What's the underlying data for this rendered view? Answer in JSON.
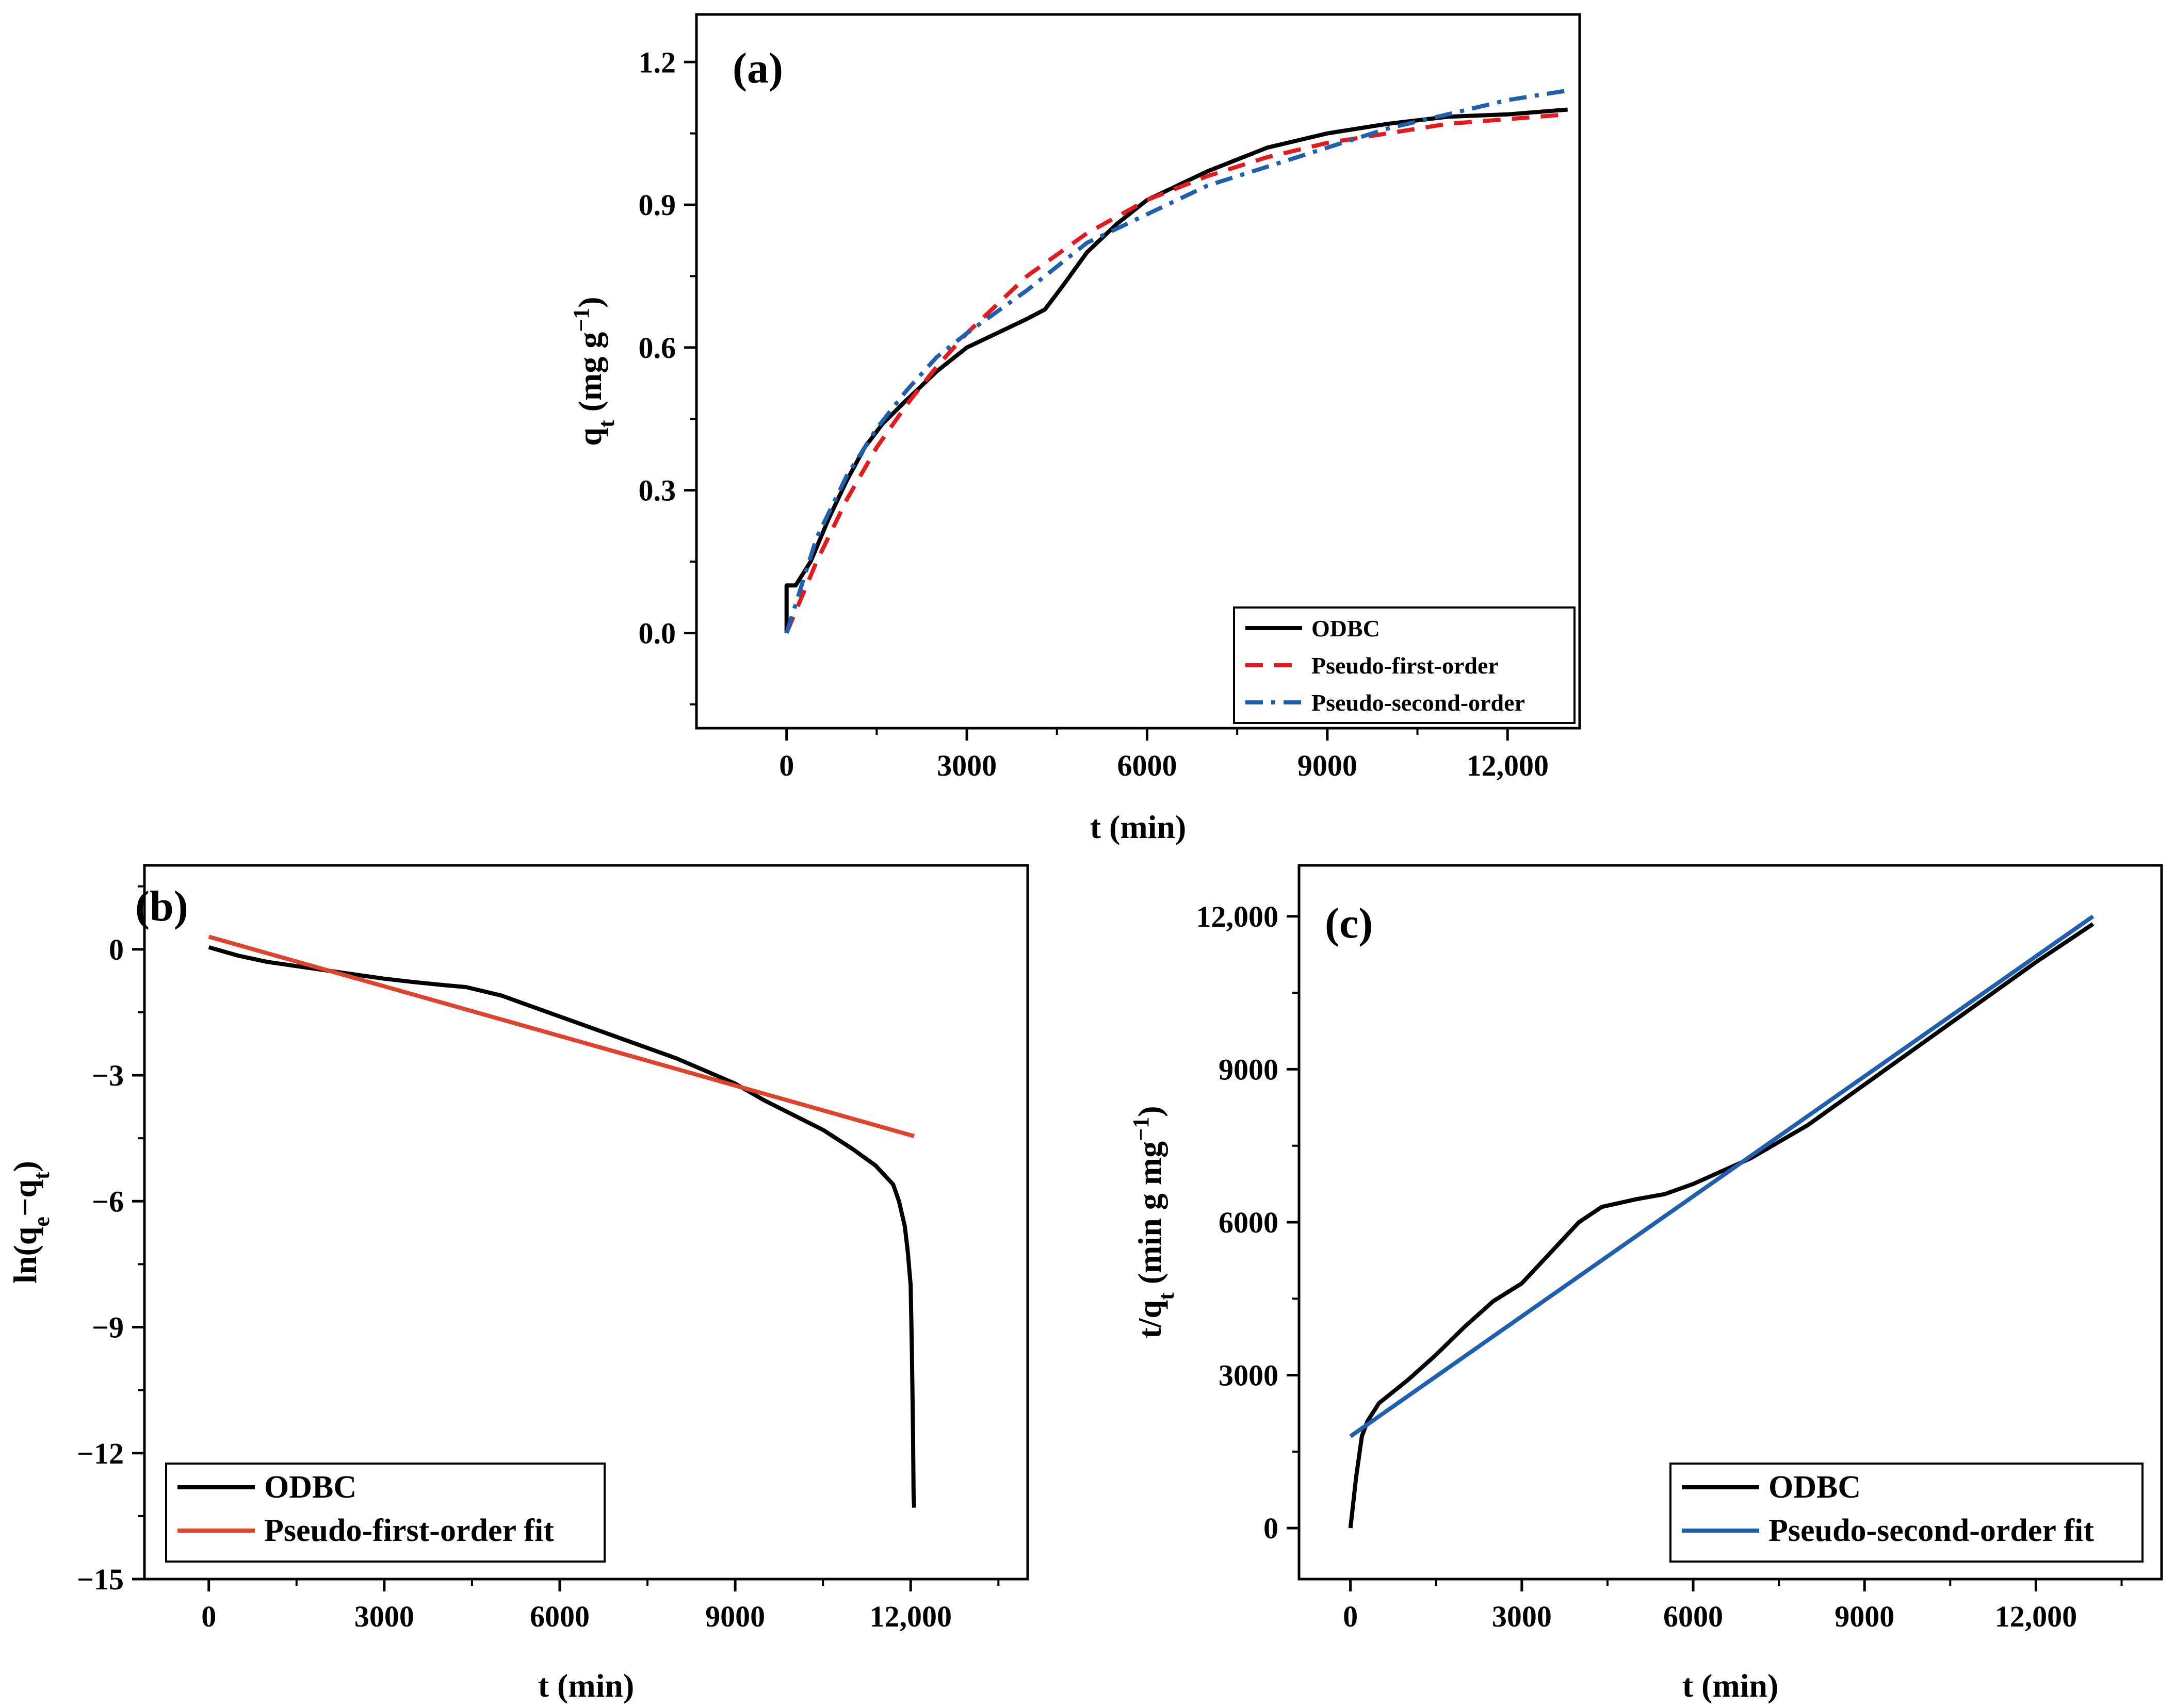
{
  "chart_data": [
    {
      "panel_label": "(a)",
      "type": "line",
      "xlabel": "t (min)",
      "ylabel": "q_t (mg g^-1)",
      "xlim": [
        -1500,
        13200
      ],
      "ylim": [
        -0.2,
        1.3
      ],
      "xticks": [
        0,
        3000,
        6000,
        9000,
        12000
      ],
      "xtick_labels": [
        "0",
        "3000",
        "6000",
        "9000",
        "12,000"
      ],
      "yticks": [
        0.0,
        0.3,
        0.6,
        0.9,
        1.2
      ],
      "ytick_labels": [
        "0.0",
        "0.3",
        "0.6",
        "0.9",
        "1.2"
      ],
      "legend": "bottom-right",
      "series": [
        {
          "name": "ODBC",
          "color": "#000000",
          "style": "solid",
          "x": [
            0,
            0,
            150,
            400,
            700,
            1000,
            1300,
            1600,
            2000,
            2500,
            3000,
            3500,
            4000,
            4300,
            4600,
            5000,
            5500,
            6000,
            7000,
            8000,
            9000,
            10000,
            11000,
            12000,
            13000
          ],
          "y": [
            0.0,
            0.1,
            0.1,
            0.15,
            0.24,
            0.32,
            0.39,
            0.44,
            0.49,
            0.55,
            0.6,
            0.63,
            0.66,
            0.68,
            0.73,
            0.8,
            0.86,
            0.91,
            0.97,
            1.02,
            1.05,
            1.07,
            1.085,
            1.09,
            1.1
          ]
        },
        {
          "name": "Pseudo-first-order",
          "color": "#e41a1c",
          "style": "dashed",
          "x": [
            0,
            500,
            1000,
            1500,
            2000,
            2500,
            3000,
            4000,
            5000,
            6000,
            7000,
            8000,
            9000,
            10000,
            11000,
            12000,
            13000
          ],
          "y": [
            0.0,
            0.15,
            0.28,
            0.39,
            0.48,
            0.56,
            0.63,
            0.75,
            0.84,
            0.91,
            0.96,
            1.0,
            1.03,
            1.05,
            1.07,
            1.08,
            1.09
          ]
        },
        {
          "name": "Pseudo-second-order",
          "color": "#1f5fb0",
          "style": "dashdot",
          "x": [
            0,
            500,
            1000,
            1500,
            2000,
            2500,
            3000,
            4000,
            5000,
            6000,
            7000,
            8000,
            9000,
            10000,
            11000,
            12000,
            13000
          ],
          "y": [
            0.0,
            0.2,
            0.33,
            0.43,
            0.51,
            0.58,
            0.63,
            0.72,
            0.82,
            0.88,
            0.94,
            0.98,
            1.02,
            1.06,
            1.09,
            1.12,
            1.14
          ]
        }
      ]
    },
    {
      "panel_label": "(b)",
      "type": "line",
      "xlabel": "t (min)",
      "ylabel": "ln(q_e-q_t)",
      "xlim": [
        -1100,
        14000
      ],
      "ylim": [
        -15,
        2
      ],
      "xticks": [
        0,
        3000,
        6000,
        9000,
        12000
      ],
      "xtick_labels": [
        "0",
        "3000",
        "6000",
        "9000",
        "12,000"
      ],
      "yticks": [
        0,
        -3,
        -6,
        -9,
        -12,
        -15
      ],
      "ytick_labels": [
        "0",
        "−3",
        "−6",
        "−9",
        "−12",
        "−15"
      ],
      "legend": "bottom-left",
      "series": [
        {
          "name": "ODBC",
          "color": "#000000",
          "style": "solid",
          "x": [
            0,
            500,
            1000,
            1500,
            2000,
            2500,
            3000,
            3500,
            4000,
            4400,
            5000,
            6000,
            7000,
            8000,
            9000,
            9500,
            10000,
            10500,
            11000,
            11400,
            11700,
            11800,
            11900,
            11950,
            12000,
            12020,
            12040,
            12050,
            12060
          ],
          "y": [
            0.05,
            -0.15,
            -0.3,
            -0.4,
            -0.5,
            -0.6,
            -0.7,
            -0.78,
            -0.85,
            -0.9,
            -1.1,
            -1.6,
            -2.1,
            -2.6,
            -3.2,
            -3.6,
            -3.95,
            -4.3,
            -4.75,
            -5.15,
            -5.6,
            -6.0,
            -6.6,
            -7.2,
            -8.0,
            -9.5,
            -11.5,
            -13.0,
            -13.3
          ]
        },
        {
          "name": "Pseudo-first-order fit",
          "color": "#e0432b",
          "style": "solid",
          "x": [
            0,
            12060
          ],
          "y": [
            0.3,
            -4.45
          ]
        }
      ]
    },
    {
      "panel_label": "(c)",
      "type": "line",
      "xlabel": "t (min)",
      "ylabel": "t/q_t (min g mg^-1)",
      "xlim": [
        -900,
        14200
      ],
      "ylim": [
        -1000,
        13000
      ],
      "xticks": [
        0,
        3000,
        6000,
        9000,
        12000
      ],
      "xtick_labels": [
        "0",
        "3000",
        "6000",
        "9000",
        "12,000"
      ],
      "yticks": [
        0,
        3000,
        6000,
        9000,
        12000
      ],
      "ytick_labels": [
        "0",
        "3000",
        "6000",
        "9000",
        "12,000"
      ],
      "legend": "bottom-right",
      "series": [
        {
          "name": "ODBC",
          "color": "#000000",
          "style": "solid",
          "x": [
            0,
            100,
            200,
            300,
            500,
            1000,
            1500,
            2000,
            2500,
            3000,
            3500,
            4000,
            4400,
            5000,
            5500,
            6000,
            7000,
            8000,
            9000,
            10000,
            11000,
            12000,
            13000
          ],
          "y": [
            0,
            1000,
            1800,
            2100,
            2450,
            2900,
            3400,
            3950,
            4450,
            4800,
            5400,
            6000,
            6300,
            6450,
            6550,
            6750,
            7250,
            7900,
            8700,
            9500,
            10300,
            11100,
            11850
          ]
        },
        {
          "name": "Pseudo-second-order fit",
          "color": "#1f5fb0",
          "style": "solid",
          "x": [
            0,
            13000
          ],
          "y": [
            1800,
            12000
          ]
        }
      ]
    }
  ]
}
